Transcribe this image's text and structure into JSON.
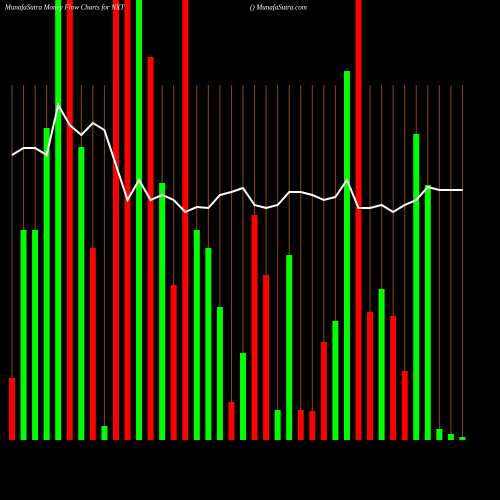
{
  "chart_data": {
    "type": "bar",
    "title": "MunafaSutra Money Flow Charts for NXT",
    "subtitle": "() MunafaSutra.com",
    "values": [
      62,
      210,
      210,
      312,
      440,
      440,
      293,
      192,
      14,
      440,
      440,
      440,
      383,
      257,
      155,
      440,
      210,
      192,
      133,
      38,
      87,
      225,
      165,
      30,
      185,
      30,
      29,
      98,
      119,
      369,
      440,
      128,
      151,
      124,
      69,
      306,
      255,
      11,
      6,
      3
    ],
    "colors": [
      "#ff0000",
      "#00ff00",
      "#00ff00",
      "#00ff00",
      "#00ff00",
      "#ff0000",
      "#00ff00",
      "#ff0000",
      "#00ff00",
      "#ff0000",
      "#ff0000",
      "#00ff00",
      "#ff0000",
      "#00ff00",
      "#ff0000",
      "#ff0000",
      "#00ff00",
      "#00ff00",
      "#00ff00",
      "#ff0000",
      "#00ff00",
      "#ff0000",
      "#ff0000",
      "#00ff00",
      "#00ff00",
      "#ff0000",
      "#ff0000",
      "#ff0000",
      "#00ff00",
      "#00ff00",
      "#ff0000",
      "#ff0000",
      "#00ff00",
      "#ff0000",
      "#ff0000",
      "#00ff00",
      "#00ff00",
      "#00ff00",
      "#00ff00",
      "#00ff00"
    ],
    "line_values": [
      285,
      292,
      292,
      285,
      335,
      315,
      305,
      317,
      310,
      275,
      240,
      260,
      240,
      245,
      240,
      228,
      233,
      232,
      245,
      248,
      252,
      235,
      232,
      235,
      248,
      248,
      245,
      240,
      243,
      260,
      232,
      232,
      235,
      228,
      235,
      240,
      253,
      250,
      250,
      250
    ],
    "line_color": "#ffffff",
    "grid": true,
    "grid_color": "#8b4a00",
    "ylim": [
      0,
      440
    ]
  }
}
